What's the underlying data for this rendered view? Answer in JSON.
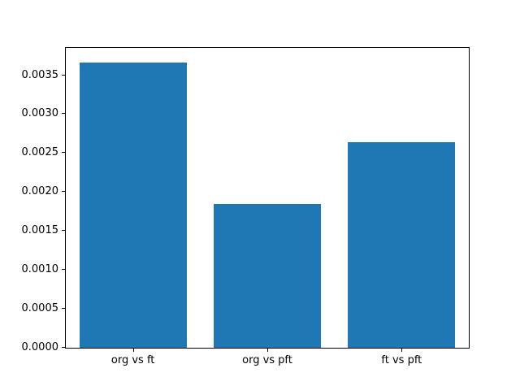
{
  "chart_data": {
    "type": "bar",
    "categories": [
      "org vs ft",
      "org vs pft",
      "ft vs pft"
    ],
    "values": [
      0.00366,
      0.00185,
      0.00264
    ],
    "title": "",
    "xlabel": "",
    "ylabel": "",
    "ylim": [
      0,
      0.00385
    ],
    "yticks": [
      "0.0000",
      "0.0005",
      "0.0010",
      "0.0015",
      "0.0020",
      "0.0025",
      "0.0030",
      "0.0035"
    ],
    "bar_color": "#1f77b4",
    "bar_width_fraction": 0.8,
    "grid": false,
    "legend": "none",
    "background": "#ffffff"
  }
}
